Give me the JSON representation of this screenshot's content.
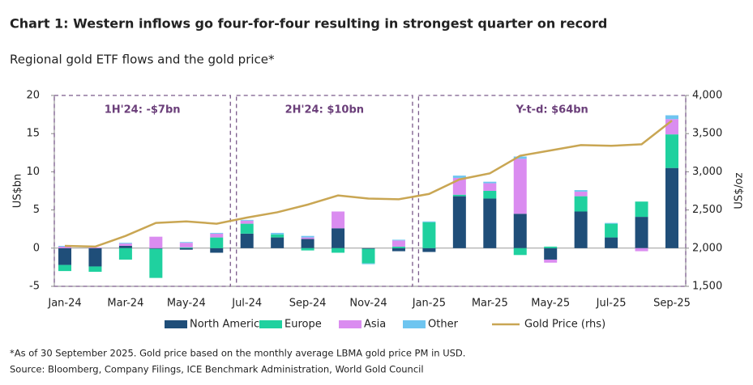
{
  "chart_data": {
    "type": "bar",
    "title": "Chart 1: Western inflows go four-for-four resulting in strongest quarter on record",
    "subtitle": "Regional gold ETF flows and the gold price*",
    "y_label": "US$bn",
    "y2_label": "US$/oz",
    "categories": [
      "Jan-24",
      null,
      "Mar-24",
      null,
      "May-24",
      null,
      "Jul-24",
      null,
      "Sep-24",
      null,
      "Nov-24",
      null,
      "Jan-25",
      null,
      "Mar-25",
      null,
      "May-25",
      null,
      "Jul-25",
      null,
      "Sep-25"
    ],
    "series": [
      {
        "name": "North America",
        "color": "#1f4e79",
        "values": [
          -2.2,
          -2.4,
          0.3,
          -0.1,
          -0.2,
          -0.6,
          1.9,
          1.4,
          1.2,
          2.6,
          -0.1,
          -0.4,
          -0.5,
          6.8,
          6.5,
          4.5,
          -1.5,
          4.8,
          1.4,
          4.1,
          10.5
        ]
      },
      {
        "name": "Europe",
        "color": "#1fd19f",
        "values": [
          -0.8,
          -0.7,
          -1.5,
          -3.8,
          0.1,
          1.4,
          1.3,
          0.4,
          -0.3,
          -0.6,
          -1.9,
          0.2,
          3.4,
          0.2,
          1.0,
          -0.9,
          0.2,
          2.0,
          1.8,
          2.0,
          4.4
        ]
      },
      {
        "name": "Asia",
        "color": "#da8cf0",
        "values": [
          0.2,
          0.1,
          0.3,
          1.5,
          0.6,
          0.5,
          0.4,
          0.0,
          0.2,
          2.2,
          0.0,
          0.8,
          0.0,
          2.2,
          1.0,
          7.2,
          -0.4,
          0.6,
          0.0,
          -0.4,
          2.0
        ]
      },
      {
        "name": "Other",
        "color": "#6ec5f0",
        "values": [
          0.1,
          0.0,
          0.1,
          0.0,
          0.1,
          0.1,
          0.1,
          0.2,
          0.2,
          0.0,
          -0.1,
          0.1,
          0.1,
          0.3,
          0.2,
          0.3,
          0.0,
          0.2,
          0.1,
          0.0,
          0.5
        ]
      },
      {
        "name": "Gold Price (rhs)",
        "color": "#c9a653",
        "type": "line",
        "axis": "y2",
        "values": [
          2030,
          2020,
          2160,
          2330,
          2350,
          2320,
          2400,
          2470,
          2570,
          2690,
          2650,
          2640,
          2710,
          2900,
          2980,
          3210,
          3280,
          3350,
          3340,
          3360,
          3670
        ]
      }
    ],
    "ylim": [
      -5,
      20
    ],
    "yticks": [
      -5,
      0,
      5,
      10,
      15,
      20
    ],
    "y2lim": [
      1500,
      4000
    ],
    "y2ticks": [
      {
        "value": 1500,
        "label": "1,500"
      },
      {
        "value": 2000,
        "label": "2,000"
      },
      {
        "value": 2500,
        "label": "2,500"
      },
      {
        "value": 3000,
        "label": "3,000"
      },
      {
        "value": 3500,
        "label": "3,500"
      },
      {
        "value": 4000,
        "label": "4,000"
      }
    ],
    "annotations": [
      "1H'24: -$7bn",
      "2H'24: $10bn",
      "Y-t-d: $64bn"
    ],
    "legend": "bottom",
    "notes": [
      "*As of 30 September 2025. Gold price based on the monthly average LBMA gold price PM in USD.",
      "Source: Bloomberg, Company Filings, ICE Benchmark Administration, World Gold Council"
    ]
  }
}
